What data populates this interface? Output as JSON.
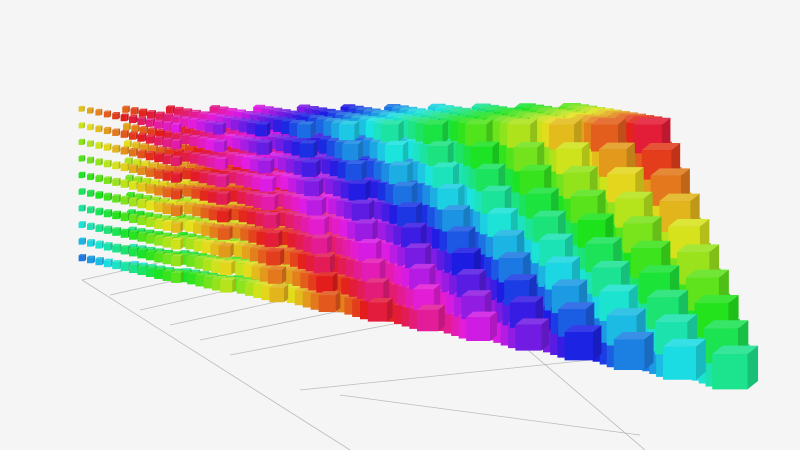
{
  "chart_data": {
    "type": "scatter3d",
    "symbol": "cube",
    "grid3d": true,
    "axis_labels_visible": false,
    "visual_map_colors": [
      "#a236e6",
      "#e8335a",
      "#e97a2f",
      "#e8d93a",
      "#5be83a",
      "#3ae8d5",
      "#3a55e8",
      "#b93ae8",
      "#e83aa7"
    ]
  }
}
